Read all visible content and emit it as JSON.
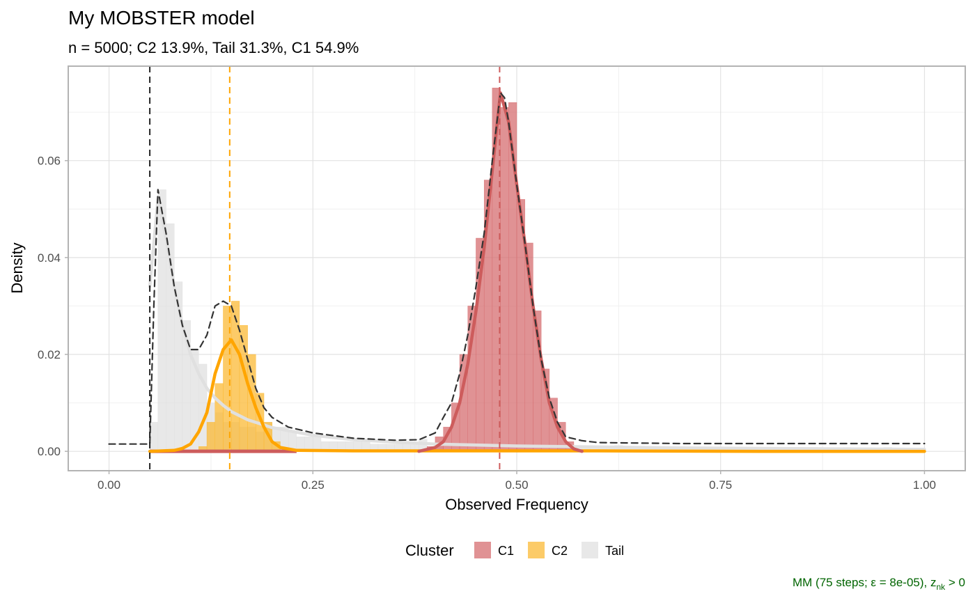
{
  "chart_data": {
    "type": "histogram",
    "title": "My MOBSTER model",
    "subtitle": "n = 5000; C2 13.9%, Tail 31.3%, C1 54.9%",
    "xlabel": "Observed Frequency",
    "ylabel": "Density",
    "xlim": [
      -0.05,
      1.05
    ],
    "ylim": [
      -0.004,
      0.0795
    ],
    "x_ticks": [
      0,
      0.25,
      0.5,
      0.75,
      1
    ],
    "x_tick_labels": [
      "0.00",
      "0.25",
      "0.50",
      "0.75",
      "1.00"
    ],
    "y_ticks": [
      0,
      0.02,
      0.04,
      0.06
    ],
    "y_tick_labels": [
      "0.00",
      "0.02",
      "0.04",
      "0.06"
    ],
    "grid": true,
    "legend": {
      "title": "Cluster",
      "position": "bottom",
      "entries": [
        {
          "name": "C1",
          "color": "#d66e70"
        },
        {
          "name": "C2",
          "color": "#fbb935"
        },
        {
          "name": "Tail",
          "color": "#e0e0e0"
        }
      ]
    },
    "caption": {
      "prefix": "MM (75 steps; ε = 8e-05), z",
      "sub": "nk",
      "suffix": " > 0"
    },
    "bin_width": 0.01,
    "histogram": {
      "Tail": {
        "color": "#e0e0e0",
        "bins": [
          [
            0.05,
            0.006
          ],
          [
            0.06,
            0.054
          ],
          [
            0.07,
            0.047
          ],
          [
            0.08,
            0.035
          ],
          [
            0.09,
            0.027
          ],
          [
            0.1,
            0.021
          ],
          [
            0.11,
            0.018
          ],
          [
            0.12,
            0.01
          ],
          [
            0.13,
            0.008
          ],
          [
            0.14,
            0.006
          ],
          [
            0.15,
            0.006
          ],
          [
            0.16,
            0.005
          ],
          [
            0.17,
            0.005
          ],
          [
            0.18,
            0.004
          ],
          [
            0.19,
            0.006
          ],
          [
            0.2,
            0.005
          ],
          [
            0.21,
            0.005
          ],
          [
            0.22,
            0.004
          ],
          [
            0.23,
            0.003
          ],
          [
            0.24,
            0.003
          ],
          [
            0.25,
            0.003
          ],
          [
            0.26,
            0.002
          ],
          [
            0.27,
            0.002
          ],
          [
            0.28,
            0.002
          ],
          [
            0.29,
            0.002
          ],
          [
            0.3,
            0.002
          ],
          [
            0.31,
            0.0025
          ],
          [
            0.32,
            0.0015
          ],
          [
            0.33,
            0.0015
          ],
          [
            0.34,
            0.0015
          ],
          [
            0.35,
            0.0015
          ],
          [
            0.36,
            0.0015
          ],
          [
            0.37,
            0.0015
          ],
          [
            0.38,
            0.0025
          ],
          [
            0.39,
            0.001
          ],
          [
            0.4,
            0.001
          ],
          [
            0.55,
            0.001
          ],
          [
            0.56,
            0.001
          ],
          [
            0.57,
            0.001
          ],
          [
            0.58,
            0.0012
          ],
          [
            0.59,
            0.001
          ],
          [
            0.6,
            0.001
          ],
          [
            0.61,
            0.0008
          ],
          [
            0.62,
            0.0012
          ],
          [
            0.63,
            0.0008
          ],
          [
            0.64,
            0.001
          ],
          [
            0.65,
            0.0009
          ],
          [
            0.66,
            0.0008
          ],
          [
            0.67,
            0.0009
          ],
          [
            0.68,
            0.0008
          ],
          [
            0.69,
            0.0008
          ],
          [
            0.7,
            0.0007
          ],
          [
            0.71,
            0.0008
          ],
          [
            0.72,
            0.0008
          ],
          [
            0.73,
            0.0007
          ],
          [
            0.74,
            0.0008
          ],
          [
            0.75,
            0.0007
          ],
          [
            0.76,
            0.0008
          ],
          [
            0.77,
            0.0007
          ],
          [
            0.78,
            0.0008
          ],
          [
            0.79,
            0.0007
          ],
          [
            0.8,
            0.0008
          ],
          [
            0.81,
            0.0007
          ],
          [
            0.82,
            0.0007
          ],
          [
            0.83,
            0.0008
          ],
          [
            0.84,
            0.0007
          ],
          [
            0.85,
            0.0007
          ],
          [
            0.86,
            0.0008
          ],
          [
            0.87,
            0.0007
          ],
          [
            0.88,
            0.0007
          ],
          [
            0.89,
            0.0007
          ],
          [
            0.9,
            0.0008
          ],
          [
            0.91,
            0.0007
          ],
          [
            0.92,
            0.0007
          ],
          [
            0.93,
            0.0007
          ],
          [
            0.94,
            0.0007
          ],
          [
            0.95,
            0.0008
          ],
          [
            0.96,
            0.0007
          ],
          [
            0.97,
            0.0007
          ],
          [
            0.98,
            0.0007
          ],
          [
            0.99,
            0.0007
          ]
        ]
      },
      "C2": {
        "color": "#fbb935",
        "bins": [
          [
            0.11,
            0.001
          ],
          [
            0.12,
            0.006
          ],
          [
            0.13,
            0.014
          ],
          [
            0.14,
            0.03
          ],
          [
            0.15,
            0.031
          ],
          [
            0.16,
            0.026
          ],
          [
            0.17,
            0.02
          ],
          [
            0.18,
            0.012
          ],
          [
            0.19,
            0.006
          ],
          [
            0.2,
            0.002
          ]
        ]
      },
      "C1": {
        "color": "#d66e70",
        "bins": [
          [
            0.39,
            0.001
          ],
          [
            0.4,
            0.003
          ],
          [
            0.41,
            0.005
          ],
          [
            0.42,
            0.01
          ],
          [
            0.43,
            0.02
          ],
          [
            0.44,
            0.03
          ],
          [
            0.45,
            0.044
          ],
          [
            0.46,
            0.056
          ],
          [
            0.47,
            0.075
          ],
          [
            0.48,
            0.071
          ],
          [
            0.49,
            0.072
          ],
          [
            0.5,
            0.052
          ],
          [
            0.51,
            0.043
          ],
          [
            0.52,
            0.029
          ],
          [
            0.53,
            0.017
          ],
          [
            0.54,
            0.011
          ],
          [
            0.55,
            0.006
          ],
          [
            0.56,
            0.002
          ]
        ]
      }
    },
    "density_curves": [
      {
        "name": "C1",
        "color": "#cd5c5c",
        "points": [
          [
            0.38,
            0
          ],
          [
            0.4,
            0.0008
          ],
          [
            0.41,
            0.002
          ],
          [
            0.42,
            0.005
          ],
          [
            0.43,
            0.01
          ],
          [
            0.44,
            0.018
          ],
          [
            0.45,
            0.029
          ],
          [
            0.46,
            0.042
          ],
          [
            0.47,
            0.058
          ],
          [
            0.475,
            0.066
          ],
          [
            0.48,
            0.074
          ],
          [
            0.485,
            0.071
          ],
          [
            0.49,
            0.068
          ],
          [
            0.5,
            0.055
          ],
          [
            0.51,
            0.043
          ],
          [
            0.52,
            0.03
          ],
          [
            0.53,
            0.019
          ],
          [
            0.54,
            0.01
          ],
          [
            0.55,
            0.005
          ],
          [
            0.56,
            0.002
          ],
          [
            0.57,
            0.0005
          ],
          [
            0.58,
            0
          ]
        ]
      },
      {
        "name": "C2",
        "color": "#ffa500",
        "points": [
          [
            0.05,
            0
          ],
          [
            0.08,
            0.0002
          ],
          [
            0.09,
            0.0006
          ],
          [
            0.1,
            0.0015
          ],
          [
            0.11,
            0.004
          ],
          [
            0.12,
            0.008
          ],
          [
            0.13,
            0.016
          ],
          [
            0.14,
            0.021
          ],
          [
            0.15,
            0.023
          ],
          [
            0.16,
            0.02
          ],
          [
            0.17,
            0.014
          ],
          [
            0.18,
            0.009
          ],
          [
            0.19,
            0.005
          ],
          [
            0.2,
            0.002
          ],
          [
            0.21,
            0.0008
          ],
          [
            0.23,
            0.0002
          ],
          [
            0.3,
            0.0001
          ],
          [
            0.4,
            0.0001
          ],
          [
            0.5,
            0.0001
          ],
          [
            0.6,
            0.0001
          ],
          [
            0.8,
            0
          ],
          [
            1.0,
            0
          ]
        ]
      },
      {
        "name": "Tail",
        "color": "#e0e0e0",
        "points": [
          [
            0.05,
            0.034
          ],
          [
            0.06,
            0.052
          ],
          [
            0.07,
            0.044
          ],
          [
            0.08,
            0.034
          ],
          [
            0.09,
            0.026
          ],
          [
            0.1,
            0.02
          ],
          [
            0.11,
            0.016
          ],
          [
            0.12,
            0.013
          ],
          [
            0.13,
            0.011
          ],
          [
            0.14,
            0.0095
          ],
          [
            0.15,
            0.0082
          ],
          [
            0.17,
            0.0065
          ],
          [
            0.2,
            0.0049
          ],
          [
            0.25,
            0.0033
          ],
          [
            0.3,
            0.0024
          ],
          [
            0.35,
            0.0019
          ],
          [
            0.4,
            0.0015
          ],
          [
            0.5,
            0.0011
          ],
          [
            0.6,
            0.0009
          ],
          [
            0.7,
            0.0007
          ],
          [
            0.8,
            0.0006
          ],
          [
            0.9,
            0.0005
          ],
          [
            1.0,
            0.0004
          ]
        ]
      },
      {
        "name": "Mixture",
        "color": "#333333",
        "dashed": true,
        "points": [
          [
            0.0,
            0.0015
          ],
          [
            0.05,
            0.0015
          ],
          [
            0.055,
            0.03
          ],
          [
            0.06,
            0.054
          ],
          [
            0.07,
            0.045
          ],
          [
            0.08,
            0.034
          ],
          [
            0.09,
            0.026
          ],
          [
            0.1,
            0.021
          ],
          [
            0.11,
            0.021
          ],
          [
            0.12,
            0.024
          ],
          [
            0.13,
            0.03
          ],
          [
            0.14,
            0.031
          ],
          [
            0.15,
            0.03
          ],
          [
            0.16,
            0.025
          ],
          [
            0.17,
            0.019
          ],
          [
            0.18,
            0.013
          ],
          [
            0.19,
            0.009
          ],
          [
            0.2,
            0.007
          ],
          [
            0.22,
            0.005
          ],
          [
            0.25,
            0.0038
          ],
          [
            0.3,
            0.0027
          ],
          [
            0.35,
            0.0023
          ],
          [
            0.38,
            0.0024
          ],
          [
            0.4,
            0.0038
          ],
          [
            0.41,
            0.007
          ],
          [
            0.42,
            0.01
          ],
          [
            0.43,
            0.016
          ],
          [
            0.44,
            0.024
          ],
          [
            0.45,
            0.034
          ],
          [
            0.46,
            0.045
          ],
          [
            0.47,
            0.06
          ],
          [
            0.48,
            0.074
          ],
          [
            0.485,
            0.073
          ],
          [
            0.49,
            0.068
          ],
          [
            0.5,
            0.055
          ],
          [
            0.51,
            0.043
          ],
          [
            0.52,
            0.03
          ],
          [
            0.53,
            0.019
          ],
          [
            0.54,
            0.011
          ],
          [
            0.55,
            0.006
          ],
          [
            0.56,
            0.003
          ],
          [
            0.58,
            0.0022
          ],
          [
            0.6,
            0.0018
          ],
          [
            0.7,
            0.0016
          ],
          [
            0.8,
            0.0016
          ],
          [
            0.9,
            0.0016
          ],
          [
            1.0,
            0.0016
          ]
        ]
      }
    ],
    "cluster_bar": {
      "from": 0.05,
      "to": 1.0,
      "y": 0
    },
    "vlines": [
      {
        "x": 0.05,
        "color": "#222222"
      },
      {
        "x": 0.148,
        "color": "#ffa500"
      },
      {
        "x": 0.479,
        "color": "#cd5c5c"
      }
    ]
  }
}
